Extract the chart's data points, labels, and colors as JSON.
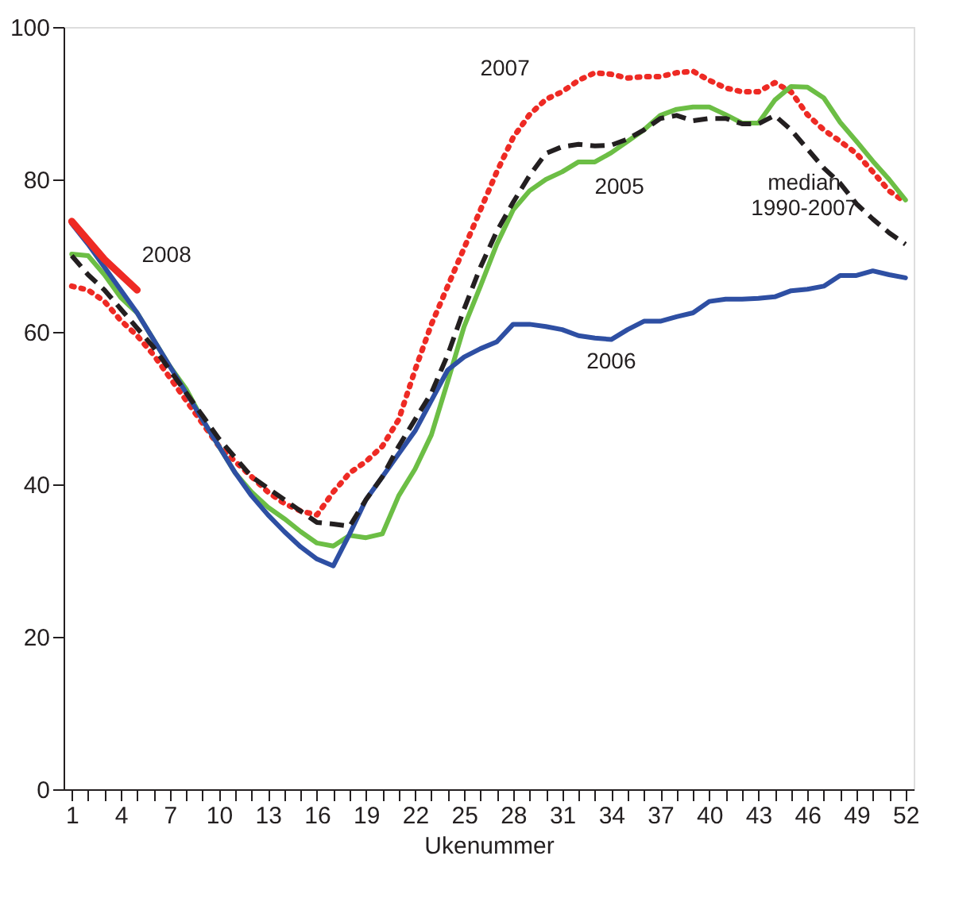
{
  "chart_data": {
    "type": "line",
    "xlabel": "Ukenummer",
    "x": [
      1,
      2,
      3,
      4,
      5,
      6,
      7,
      8,
      9,
      10,
      11,
      12,
      13,
      14,
      15,
      16,
      17,
      18,
      19,
      20,
      21,
      22,
      23,
      24,
      25,
      26,
      27,
      28,
      29,
      30,
      31,
      32,
      33,
      34,
      35,
      36,
      37,
      38,
      39,
      40,
      41,
      42,
      43,
      44,
      45,
      46,
      47,
      48,
      49,
      50,
      51,
      52
    ],
    "xlim": [
      0.5,
      52.5
    ],
    "xticks": [
      1,
      {
        "value": 2,
        "label": null
      },
      {
        "value": 3,
        "label": null
      },
      4,
      {
        "value": 5,
        "label": null
      },
      {
        "value": 6,
        "label": null
      },
      7,
      {
        "value": 8,
        "label": null
      },
      {
        "value": 9,
        "label": null
      },
      10,
      {
        "value": 11,
        "label": null
      },
      {
        "value": 12,
        "label": null
      },
      13,
      {
        "value": 14,
        "label": null
      },
      {
        "value": 15,
        "label": null
      },
      16,
      {
        "value": 17,
        "label": null
      },
      {
        "value": 18,
        "label": null
      },
      19,
      {
        "value": 20,
        "label": null
      },
      {
        "value": 21,
        "label": null
      },
      22,
      {
        "value": 23,
        "label": null
      },
      {
        "value": 24,
        "label": null
      },
      25,
      {
        "value": 26,
        "label": null
      },
      {
        "value": 27,
        "label": null
      },
      28,
      {
        "value": 29,
        "label": null
      },
      {
        "value": 30,
        "label": null
      },
      31,
      {
        "value": 32,
        "label": null
      },
      {
        "value": 33,
        "label": null
      },
      34,
      {
        "value": 35,
        "label": null
      },
      {
        "value": 36,
        "label": null
      },
      37,
      {
        "value": 38,
        "label": null
      },
      {
        "value": 39,
        "label": null
      },
      40,
      {
        "value": 41,
        "label": null
      },
      {
        "value": 42,
        "label": null
      },
      43,
      {
        "value": 44,
        "label": null
      },
      {
        "value": 45,
        "label": null
      },
      46,
      {
        "value": 47,
        "label": null
      },
      {
        "value": 48,
        "label": null
      },
      49,
      {
        "value": 50,
        "label": null
      },
      {
        "value": 51,
        "label": null
      },
      52
    ],
    "ylim": [
      0,
      100
    ],
    "yticks": [
      0,
      20,
      40,
      60,
      80,
      100
    ],
    "grid": false,
    "marker": "none",
    "series": [
      {
        "name": "2007",
        "color": "#ee2a24",
        "line_style": "dotted",
        "values": [
          66,
          65.5,
          64,
          61.5,
          59.5,
          57,
          54,
          51,
          48,
          45,
          43,
          41,
          39,
          37.5,
          36.5,
          36,
          39,
          41.5,
          43,
          45,
          48.5,
          55,
          61,
          66,
          71,
          76,
          81,
          85.5,
          88.5,
          90.5,
          91.5,
          93,
          94,
          93.8,
          93.3,
          93.5,
          93.5,
          94,
          94.2,
          93,
          92,
          91.5,
          91.5,
          92.7,
          91.5,
          88.5,
          86.5,
          85,
          83.4,
          81,
          78.5,
          77
        ]
      },
      {
        "name": "2005",
        "color": "#6cbe45",
        "line_style": "solid",
        "values": [
          70.2,
          70,
          67.5,
          64.5,
          62.5,
          59,
          55.5,
          52.5,
          48.5,
          45,
          41.5,
          39,
          37,
          35.5,
          33.8,
          32.3,
          31.9,
          33.3,
          33,
          33.5,
          38.5,
          42,
          46.5,
          53.5,
          60.7,
          66,
          71.5,
          76,
          78.5,
          80,
          81,
          82.3,
          82.3,
          83.5,
          85,
          86.5,
          88.4,
          89.2,
          89.5,
          89.5,
          88.5,
          87.4,
          87.4,
          90.4,
          92.2,
          92.1,
          90.7,
          87.5,
          85,
          82.4,
          80,
          77.3
        ]
      },
      {
        "name": "2006",
        "color": "#2e4fa3",
        "line_style": "solid",
        "values": [
          74.2,
          71.5,
          68.5,
          65.5,
          62.5,
          59,
          55.5,
          52,
          48.5,
          45,
          41.5,
          38.5,
          36,
          33.8,
          31.8,
          30.2,
          29.3,
          33.5,
          38,
          41,
          44,
          47,
          51,
          55,
          56.7,
          57.8,
          58.7,
          61,
          61,
          60.7,
          60.3,
          59.5,
          59.2,
          59,
          60.3,
          61.4,
          61.4,
          62,
          62.5,
          64,
          64.3,
          64.3,
          64.4,
          64.6,
          65.4,
          65.6,
          66,
          67.4,
          67.4,
          68,
          67.5,
          67.1
        ]
      },
      {
        "name": "median 1990-2007",
        "color": "#231f20",
        "line_style": "dashed",
        "values": [
          70,
          67.5,
          65.5,
          63,
          60.5,
          58,
          55,
          52,
          49,
          46,
          43.5,
          41,
          39.5,
          38,
          36.5,
          35,
          34.8,
          34.5,
          38,
          41,
          45,
          48.5,
          52,
          57,
          63,
          68.5,
          73.2,
          77,
          80.5,
          83.4,
          84.3,
          84.6,
          84.4,
          84.5,
          85.3,
          86.5,
          88,
          88.4,
          87.7,
          88,
          88,
          87.3,
          87.3,
          88.4,
          86.5,
          84,
          81.5,
          79.5,
          76.8,
          74.8,
          73,
          71.5
        ]
      },
      {
        "name": "2008",
        "color": "#ee2a24",
        "line_style": "solid",
        "x": [
          1,
          2,
          3,
          4,
          5
        ],
        "values": [
          74.5,
          72,
          69.5,
          67.5,
          65.5
        ]
      }
    ]
  }
}
